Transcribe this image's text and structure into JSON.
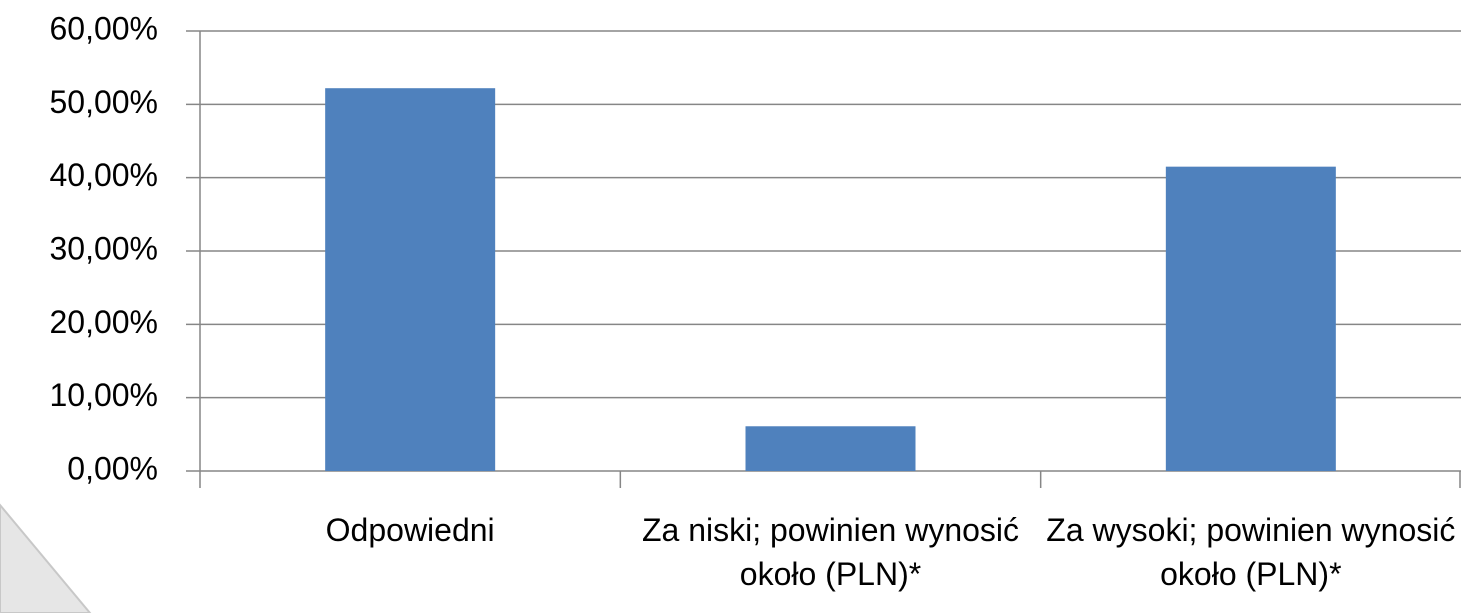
{
  "chart_data": {
    "type": "bar",
    "categories": [
      "Odpowiedni",
      "Za niski; powinien wynosić około (PLN)*",
      "Za wysoki; powinien wynosić około (PLN)*"
    ],
    "values": [
      52.2,
      6.1,
      41.5
    ],
    "color": "#4f81bd",
    "ylim": [
      0,
      60
    ],
    "yticks": [
      {
        "value": 0,
        "label": "0,00%"
      },
      {
        "value": 10,
        "label": "10,00%"
      },
      {
        "value": 20,
        "label": "20,00%"
      },
      {
        "value": 30,
        "label": "30,00%"
      },
      {
        "value": 40,
        "label": "40,00%"
      },
      {
        "value": 50,
        "label": "50,00%"
      },
      {
        "value": 60,
        "label": "60,00%"
      }
    ],
    "grid": true
  }
}
